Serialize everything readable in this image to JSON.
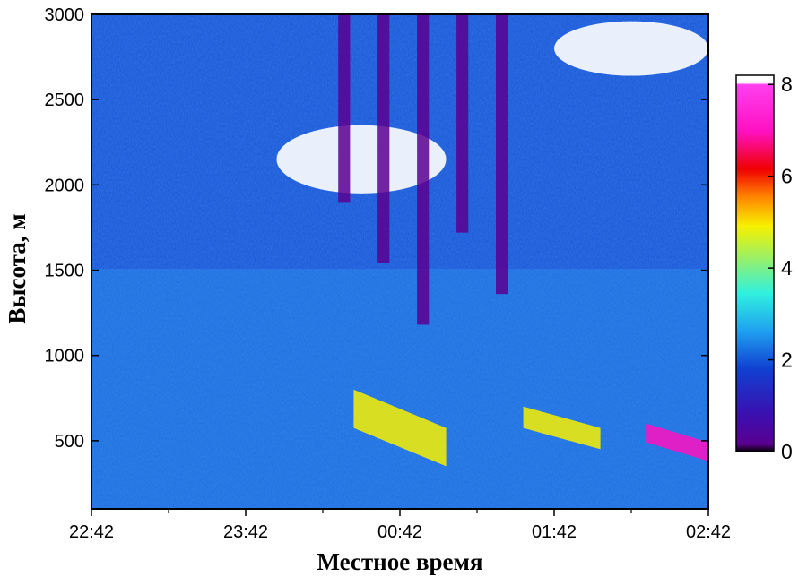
{
  "chart_data": {
    "type": "heatmap",
    "title": "",
    "xlabel": "Местное время",
    "ylabel": "Высота, м",
    "x_ticks": [
      "22:42",
      "23:42",
      "00:42",
      "01:42",
      "02:42"
    ],
    "x_range_hours": [
      0,
      4
    ],
    "y_ticks": [
      500,
      1000,
      1500,
      2000,
      2500,
      3000
    ],
    "ylim": [
      100,
      3000
    ],
    "colorbar": {
      "ticks": [
        0,
        2,
        4,
        6,
        8
      ],
      "range": [
        0,
        8.2
      ],
      "colors": [
        "#000000",
        "#5a0090",
        "#1040d0",
        "#20a0f0",
        "#30f0e0",
        "#a0f060",
        "#f8f000",
        "#ff8000",
        "#f00000",
        "#ff10c0",
        "#ff40f0",
        "#ffffff"
      ]
    },
    "features": [
      {
        "kind": "aerosol_layer",
        "x_hours": [
          1.7,
          2.3
        ],
        "y_m": [
          350,
          800
        ],
        "level": 5.5
      },
      {
        "kind": "aerosol_layer",
        "x_hours": [
          2.8,
          3.3
        ],
        "y_m": [
          450,
          700
        ],
        "level": 5.5
      },
      {
        "kind": "aerosol_layer",
        "x_hours": [
          3.6,
          4.0
        ],
        "y_m": [
          380,
          600
        ],
        "level": 7.5
      },
      {
        "kind": "clouds",
        "x_hours": [
          1.2,
          2.3
        ],
        "y_m": [
          1900,
          2400
        ],
        "level": 8.2
      },
      {
        "kind": "clouds",
        "x_hours": [
          3.0,
          4.0
        ],
        "y_m": [
          2600,
          3000
        ],
        "level": 8.2
      },
      {
        "kind": "signal_blocked",
        "x_hours": [
          1.6,
          2.75
        ],
        "y_m": [
          1000,
          3000
        ],
        "level": 0.6
      }
    ]
  }
}
